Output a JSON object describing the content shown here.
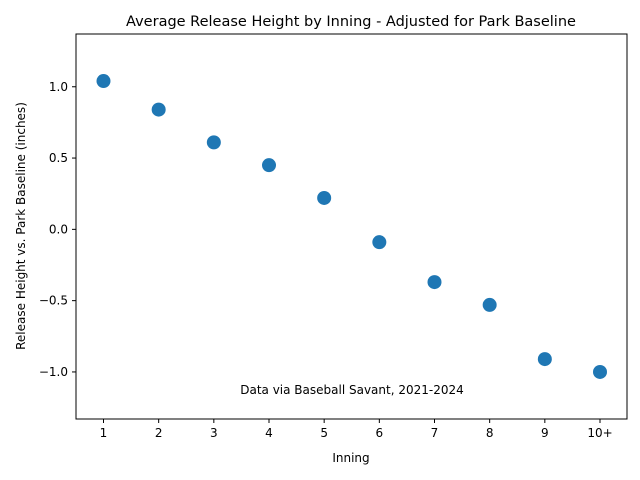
{
  "chart_data": {
    "type": "scatter",
    "title": "Average Release Height by Inning - Adjusted for Park Baseline",
    "xlabel": "Inning",
    "ylabel": "Release Height vs. Park Baseline (inches)",
    "annotation": "Data via Baseball Savant, 2021-2024",
    "categories": [
      "1",
      "2",
      "3",
      "4",
      "5",
      "6",
      "7",
      "8",
      "9",
      "10+"
    ],
    "values": [
      1.04,
      0.84,
      0.61,
      0.45,
      0.22,
      -0.09,
      -0.37,
      -0.53,
      -0.91,
      -1.0
    ],
    "ylim": [
      -1.33,
      1.37
    ],
    "yticks": [
      -1.0,
      -0.5,
      0.0,
      0.5,
      1.0
    ],
    "ytick_labels": [
      "−1.0",
      "−0.5",
      "0.0",
      "0.5",
      "1.0"
    ],
    "grid": false,
    "legend": "none",
    "marker_color": "#1f77b4"
  }
}
